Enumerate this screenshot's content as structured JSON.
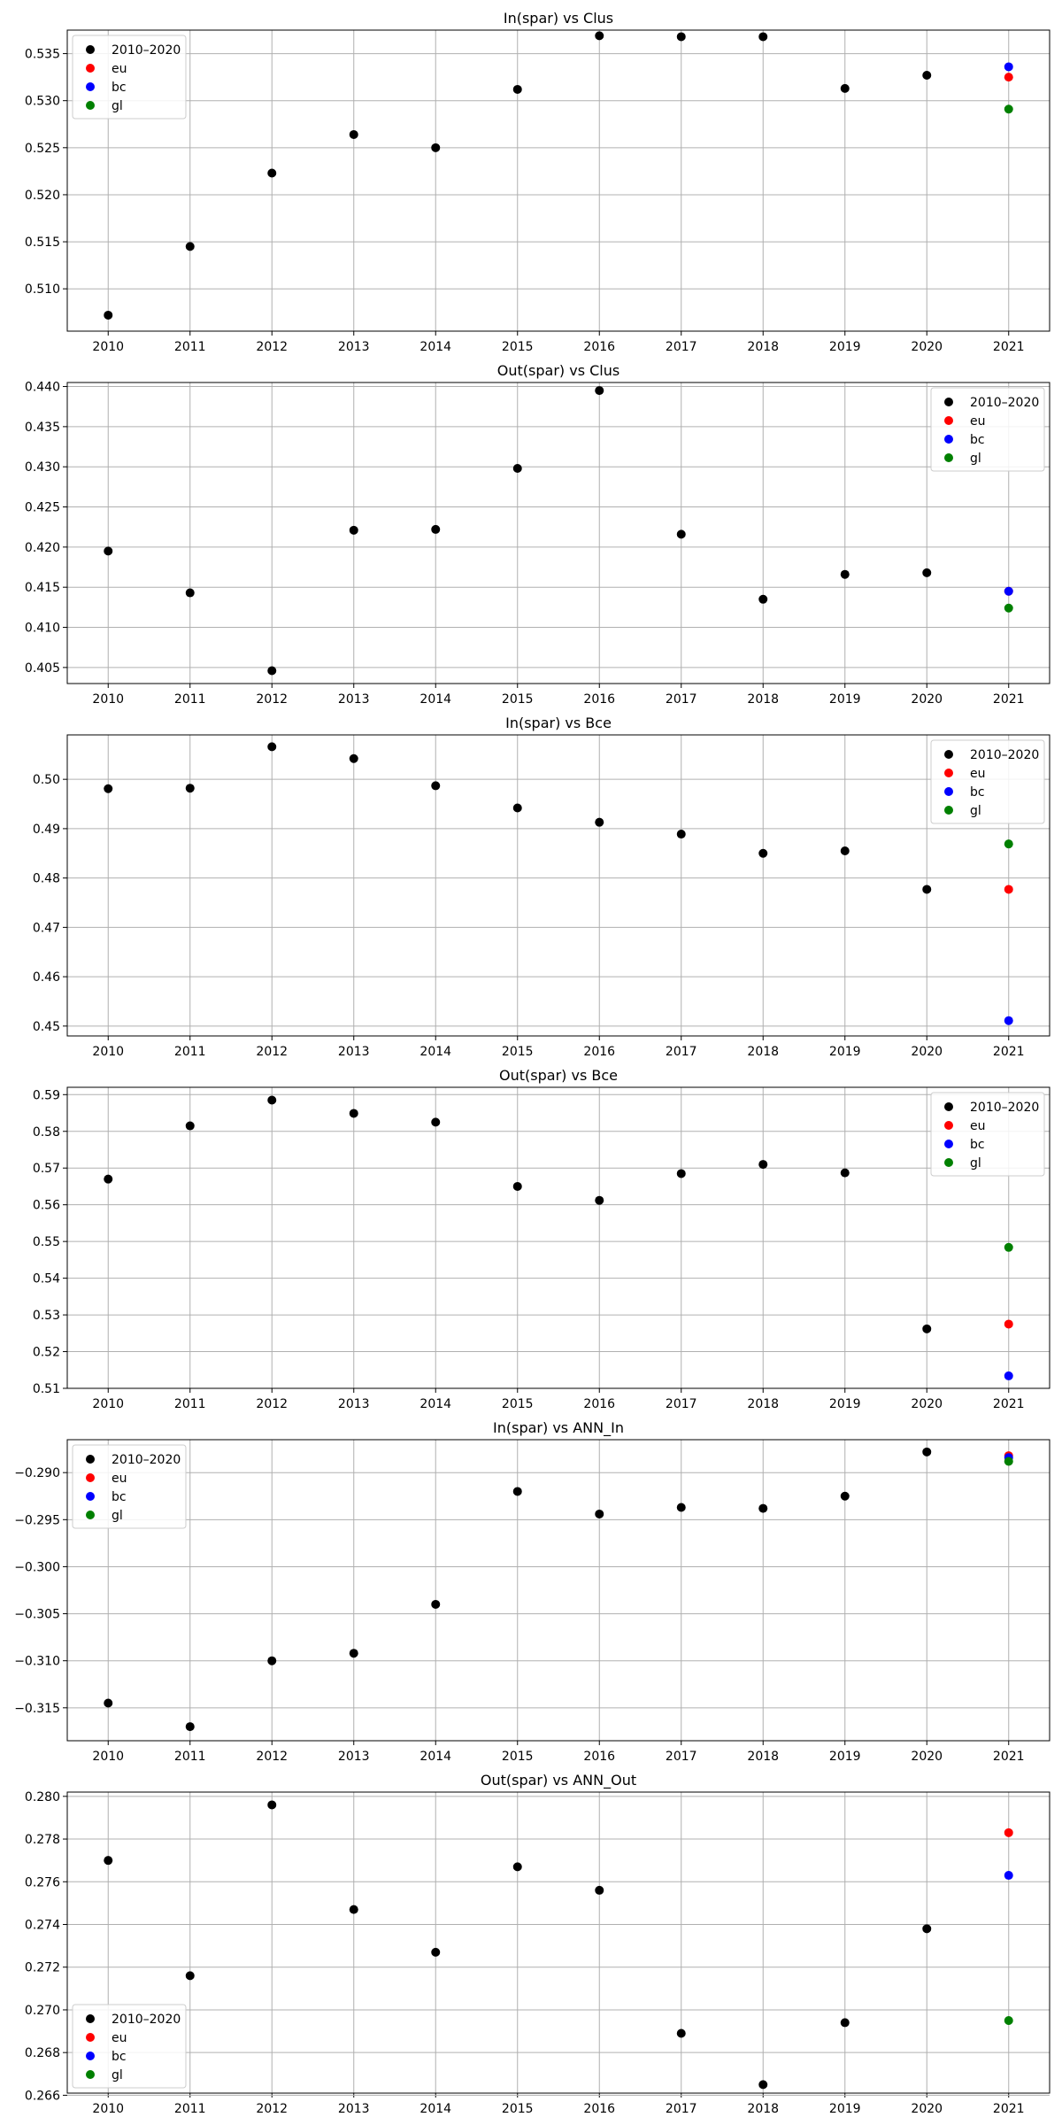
{
  "chart_data": [
    {
      "type": "scatter",
      "title": "In(spar) vs Clus",
      "x": [
        2010,
        2011,
        2012,
        2013,
        2014,
        2015,
        2016,
        2017,
        2018,
        2019,
        2020
      ],
      "xticks": [
        "2010",
        "2011",
        "2012",
        "2013",
        "2014",
        "2015",
        "2016",
        "2017",
        "2018",
        "2019",
        "2020",
        "2021"
      ],
      "ylim": [
        0.5055,
        0.5375
      ],
      "yticks": [
        "0.510",
        "0.515",
        "0.520",
        "0.525",
        "0.530",
        "0.535"
      ],
      "ytick_values": [
        0.51,
        0.515,
        0.52,
        0.525,
        0.53,
        0.535
      ],
      "grid": true,
      "legend": "upper-left",
      "series": [
        {
          "name": "2010–2020",
          "color": "#000000",
          "x": [
            2010,
            2011,
            2012,
            2013,
            2014,
            2015,
            2016,
            2017,
            2018,
            2019,
            2020
          ],
          "y": [
            0.5072,
            0.5145,
            0.5223,
            0.5264,
            0.525,
            0.5312,
            0.5369,
            0.5368,
            0.5368,
            0.5313,
            0.5327
          ]
        },
        {
          "name": "eu",
          "color": "#ff0000",
          "x": [
            2021
          ],
          "y": [
            0.5325
          ]
        },
        {
          "name": "bc",
          "color": "#0000ff",
          "x": [
            2021
          ],
          "y": [
            0.5336
          ]
        },
        {
          "name": "gl",
          "color": "#008000",
          "x": [
            2021
          ],
          "y": [
            0.5291
          ]
        }
      ]
    },
    {
      "type": "scatter",
      "title": "Out(spar) vs Clus",
      "xticks": [
        "2010",
        "2011",
        "2012",
        "2013",
        "2014",
        "2015",
        "2016",
        "2017",
        "2018",
        "2019",
        "2020",
        "2021"
      ],
      "ylim": [
        0.403,
        0.4405
      ],
      "yticks": [
        "0.405",
        "0.410",
        "0.415",
        "0.420",
        "0.425",
        "0.430",
        "0.435",
        "0.440"
      ],
      "ytick_values": [
        0.405,
        0.41,
        0.415,
        0.42,
        0.425,
        0.43,
        0.435,
        0.44
      ],
      "grid": true,
      "legend": "upper-right",
      "series": [
        {
          "name": "2010–2020",
          "color": "#000000",
          "x": [
            2010,
            2011,
            2012,
            2013,
            2014,
            2015,
            2016,
            2017,
            2018,
            2019,
            2020
          ],
          "y": [
            0.4195,
            0.4143,
            0.4046,
            0.4221,
            0.4222,
            0.4298,
            0.4395,
            0.4216,
            0.4135,
            0.4166,
            0.4168
          ]
        },
        {
          "name": "eu",
          "color": "#ff0000",
          "x": [
            2021
          ],
          "y": [
            0.4145
          ]
        },
        {
          "name": "bc",
          "color": "#0000ff",
          "x": [
            2021
          ],
          "y": [
            0.4145
          ]
        },
        {
          "name": "gl",
          "color": "#008000",
          "x": [
            2021
          ],
          "y": [
            0.4124
          ]
        }
      ]
    },
    {
      "type": "scatter",
      "title": "In(spar) vs Bce",
      "xticks": [
        "2010",
        "2011",
        "2012",
        "2013",
        "2014",
        "2015",
        "2016",
        "2017",
        "2018",
        "2019",
        "2020",
        "2021"
      ],
      "ylim": [
        0.448,
        0.509
      ],
      "yticks": [
        "0.45",
        "0.46",
        "0.47",
        "0.48",
        "0.49",
        "0.50"
      ],
      "ytick_values": [
        0.45,
        0.46,
        0.47,
        0.48,
        0.49,
        0.5
      ],
      "grid": true,
      "legend": "upper-right",
      "series": [
        {
          "name": "2010–2020",
          "color": "#000000",
          "x": [
            2010,
            2011,
            2012,
            2013,
            2014,
            2015,
            2016,
            2017,
            2018,
            2019,
            2020
          ],
          "y": [
            0.4981,
            0.4982,
            0.5066,
            0.5042,
            0.4987,
            0.4942,
            0.4913,
            0.4889,
            0.485,
            0.4855,
            0.4777
          ]
        },
        {
          "name": "eu",
          "color": "#ff0000",
          "x": [
            2021
          ],
          "y": [
            0.4777
          ]
        },
        {
          "name": "bc",
          "color": "#0000ff",
          "x": [
            2021
          ],
          "y": [
            0.4511
          ]
        },
        {
          "name": "gl",
          "color": "#008000",
          "x": [
            2021
          ],
          "y": [
            0.4869
          ]
        }
      ]
    },
    {
      "type": "scatter",
      "title": "Out(spar) vs Bce",
      "xticks": [
        "2010",
        "2011",
        "2012",
        "2013",
        "2014",
        "2015",
        "2016",
        "2017",
        "2018",
        "2019",
        "2020",
        "2021"
      ],
      "ylim": [
        0.51,
        0.592
      ],
      "yticks": [
        "0.51",
        "0.52",
        "0.53",
        "0.54",
        "0.55",
        "0.56",
        "0.57",
        "0.58",
        "0.59"
      ],
      "ytick_values": [
        0.51,
        0.52,
        0.53,
        0.54,
        0.55,
        0.56,
        0.57,
        0.58,
        0.59
      ],
      "grid": true,
      "legend": "upper-right",
      "series": [
        {
          "name": "2010–2020",
          "color": "#000000",
          "x": [
            2010,
            2011,
            2012,
            2013,
            2014,
            2015,
            2016,
            2017,
            2018,
            2019,
            2020
          ],
          "y": [
            0.567,
            0.5815,
            0.5885,
            0.5849,
            0.5825,
            0.565,
            0.5612,
            0.5685,
            0.571,
            0.5687,
            0.5262
          ]
        },
        {
          "name": "eu",
          "color": "#ff0000",
          "x": [
            2021
          ],
          "y": [
            0.5275
          ]
        },
        {
          "name": "bc",
          "color": "#0000ff",
          "x": [
            2021
          ],
          "y": [
            0.5134
          ]
        },
        {
          "name": "gl",
          "color": "#008000",
          "x": [
            2021
          ],
          "y": [
            0.5484
          ]
        }
      ]
    },
    {
      "type": "scatter",
      "title": "In(spar) vs ANN_In",
      "xticks": [
        "2010",
        "2011",
        "2012",
        "2013",
        "2014",
        "2015",
        "2016",
        "2017",
        "2018",
        "2019",
        "2020",
        "2021"
      ],
      "ylim": [
        -0.3185,
        -0.2865
      ],
      "yticks": [
        "−0.315",
        "−0.310",
        "−0.305",
        "−0.300",
        "−0.295",
        "−0.290"
      ],
      "ytick_values": [
        -0.315,
        -0.31,
        -0.305,
        -0.3,
        -0.295,
        -0.29
      ],
      "grid": true,
      "legend": "upper-left",
      "series": [
        {
          "name": "2010–2020",
          "color": "#000000",
          "x": [
            2010,
            2011,
            2012,
            2013,
            2014,
            2015,
            2016,
            2017,
            2018,
            2019,
            2020
          ],
          "y": [
            -0.3145,
            -0.317,
            -0.31,
            -0.3092,
            -0.304,
            -0.292,
            -0.2944,
            -0.2937,
            -0.2938,
            -0.2925,
            -0.2878
          ]
        },
        {
          "name": "eu",
          "color": "#ff0000",
          "x": [
            2021
          ],
          "y": [
            -0.2882
          ]
        },
        {
          "name": "bc",
          "color": "#0000ff",
          "x": [
            2021
          ],
          "y": [
            -0.2884
          ]
        },
        {
          "name": "gl",
          "color": "#008000",
          "x": [
            2021
          ],
          "y": [
            -0.2888
          ]
        }
      ]
    },
    {
      "type": "scatter",
      "title": "Out(spar) vs ANN_Out",
      "xticks": [
        "2010",
        "2011",
        "2012",
        "2013",
        "2014",
        "2015",
        "2016",
        "2017",
        "2018",
        "2019",
        "2020",
        "2021"
      ],
      "ylim": [
        0.2661,
        0.2802
      ],
      "yticks": [
        "0.266",
        "0.268",
        "0.270",
        "0.272",
        "0.274",
        "0.276",
        "0.278",
        "0.280"
      ],
      "ytick_values": [
        0.266,
        0.268,
        0.27,
        0.272,
        0.274,
        0.276,
        0.278,
        0.28
      ],
      "grid": true,
      "legend": "lower-left",
      "series": [
        {
          "name": "2010–2020",
          "color": "#000000",
          "x": [
            2010,
            2011,
            2012,
            2013,
            2014,
            2015,
            2016,
            2017,
            2018,
            2019,
            2020
          ],
          "y": [
            0.277,
            0.2716,
            0.2796,
            0.2747,
            0.2727,
            0.2767,
            0.2756,
            0.2689,
            0.2665,
            0.2694,
            0.2738
          ]
        },
        {
          "name": "eu",
          "color": "#ff0000",
          "x": [
            2021
          ],
          "y": [
            0.2783
          ]
        },
        {
          "name": "bc",
          "color": "#0000ff",
          "x": [
            2021
          ],
          "y": [
            0.2763
          ]
        },
        {
          "name": "gl",
          "color": "#008000",
          "x": [
            2021
          ],
          "y": [
            0.2695
          ]
        }
      ]
    }
  ]
}
